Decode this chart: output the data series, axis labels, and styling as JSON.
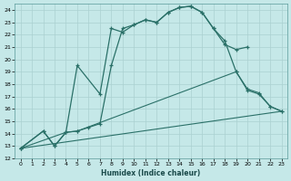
{
  "xlabel": "Humidex (Indice chaleur)",
  "bg_color": "#c5e8e8",
  "grid_color": "#aad0d0",
  "line_color": "#2a7068",
  "xlim": [
    -0.5,
    23.5
  ],
  "ylim": [
    12,
    24.5
  ],
  "xticks": [
    0,
    1,
    2,
    3,
    4,
    5,
    6,
    7,
    8,
    9,
    10,
    11,
    12,
    13,
    14,
    15,
    16,
    17,
    18,
    19,
    20,
    21,
    22,
    23
  ],
  "yticks": [
    12,
    13,
    14,
    15,
    16,
    17,
    18,
    19,
    20,
    21,
    22,
    23,
    24
  ],
  "line1_x": [
    0,
    2,
    3,
    4,
    5,
    7,
    8,
    9,
    10,
    11,
    12,
    13,
    14,
    15,
    16,
    17,
    18,
    19,
    20
  ],
  "line1_y": [
    12.8,
    14.2,
    13.0,
    14.1,
    19.5,
    17.2,
    22.5,
    22.2,
    22.8,
    23.2,
    23.0,
    23.8,
    24.2,
    24.3,
    23.8,
    22.5,
    21.2,
    20.8,
    21.0
  ],
  "line2_x": [
    0,
    2,
    3,
    4,
    5,
    6,
    7,
    8,
    9,
    10,
    11,
    12,
    13,
    14,
    15,
    16,
    17,
    18,
    19,
    20,
    21,
    22,
    23
  ],
  "line2_y": [
    12.8,
    14.2,
    13.0,
    14.1,
    14.2,
    14.5,
    14.8,
    19.5,
    22.5,
    22.8,
    23.2,
    23.0,
    23.8,
    24.2,
    24.3,
    23.8,
    22.5,
    21.5,
    19.0,
    17.5,
    17.2,
    16.2,
    15.8
  ],
  "line3_x": [
    0,
    23
  ],
  "line3_y": [
    12.8,
    15.8
  ],
  "line4_x": [
    0,
    4,
    5,
    19,
    20,
    21,
    22,
    23
  ],
  "line4_y": [
    12.8,
    14.1,
    14.2,
    19.0,
    17.6,
    17.3,
    16.2,
    15.8
  ]
}
